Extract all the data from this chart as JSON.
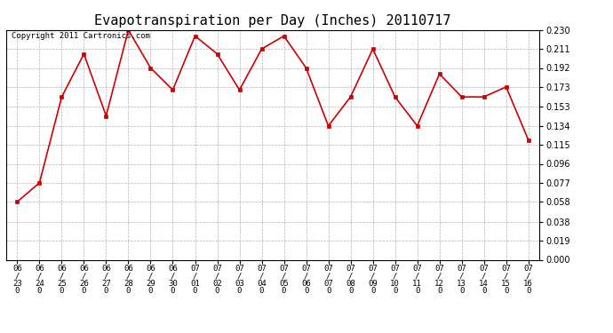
{
  "title": "Evapotranspiration per Day (Inches) 20110717",
  "copyright_text": "Copyright 2011 Cartronics.com",
  "dates": [
    "06/23",
    "06/24",
    "06/25",
    "06/26",
    "06/27",
    "06/28",
    "06/29",
    "06/30",
    "07/01",
    "07/02",
    "07/03",
    "07/04",
    "07/05",
    "07/06",
    "07/07",
    "07/08",
    "07/09",
    "07/10",
    "07/11",
    "07/12",
    "07/13",
    "07/14",
    "07/15",
    "07/16"
  ],
  "values": [
    0.058,
    0.077,
    0.163,
    0.206,
    0.144,
    0.23,
    0.192,
    0.17,
    0.224,
    0.206,
    0.17,
    0.211,
    0.224,
    0.192,
    0.134,
    0.163,
    0.211,
    0.163,
    0.134,
    0.186,
    0.163,
    0.163,
    0.173,
    0.12
  ],
  "line_color": "#cc0000",
  "marker": "s",
  "marker_size": 3,
  "marker_color": "#cc0000",
  "background_color": "#ffffff",
  "grid_color": "#aaaaaa",
  "ylim": [
    0.0,
    0.23
  ],
  "yticks": [
    0.0,
    0.019,
    0.038,
    0.058,
    0.077,
    0.096,
    0.115,
    0.134,
    0.153,
    0.173,
    0.192,
    0.211,
    0.23
  ],
  "title_fontsize": 11,
  "copyright_fontsize": 6.5
}
